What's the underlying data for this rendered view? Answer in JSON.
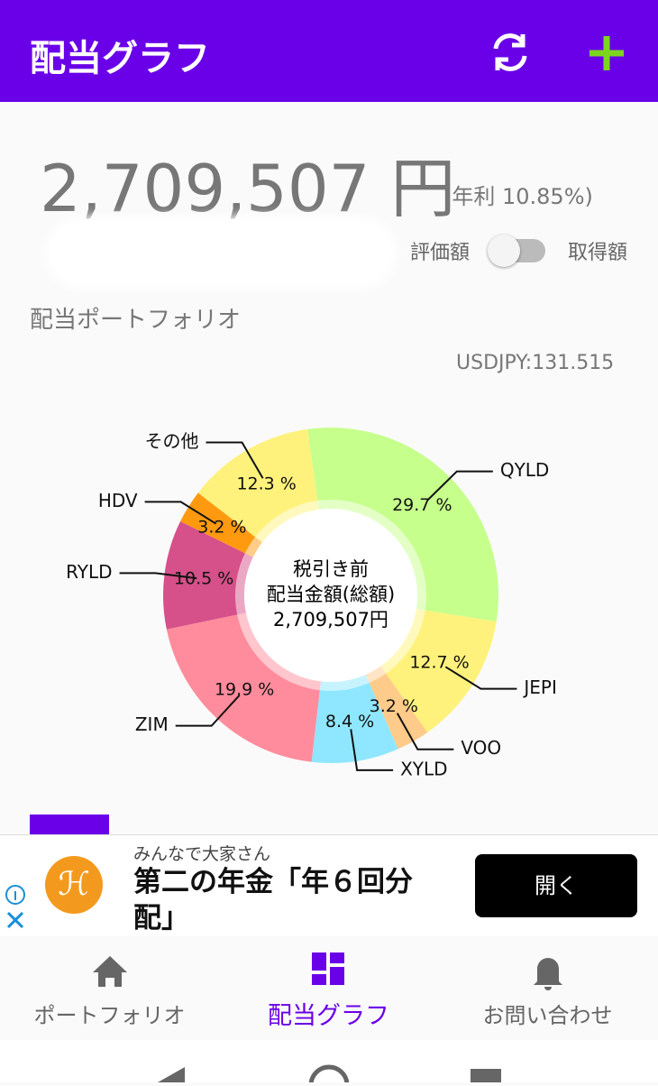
{
  "header": {
    "title": "配当グラフ"
  },
  "summary": {
    "amount": "2,709,507 円",
    "yield": "(年利 10.85%)",
    "toggle_left": "評価額",
    "toggle_right": "取得額"
  },
  "section_title": "配当ポートフォリオ",
  "fx_rate": "USDJPY:131.515",
  "chart_data": {
    "type": "donut",
    "center_text": [
      "税引き前",
      "配当金額(総額)",
      "2,709,507円"
    ],
    "categories": [
      "QYLD",
      "JEPI",
      "VOO",
      "XYLD",
      "ZIM",
      "RYLD",
      "HDV",
      "その他"
    ],
    "values": [
      29.7,
      12.7,
      3.2,
      8.4,
      19.9,
      10.5,
      3.2,
      12.3
    ],
    "value_labels": [
      "29.7 %",
      "12.7 %",
      "3.2 %",
      "8.4 %",
      "19.9 %",
      "10.5 %",
      "3.2 %",
      "12.3 %"
    ],
    "colors": [
      "#c6ff8c",
      "#fff27c",
      "#ffcb8a",
      "#8fe7ff",
      "#ff8c9c",
      "#d6508a",
      "#ff9a10",
      "#fff27c"
    ]
  },
  "ad": {
    "sponsor": "みんなで大家さん",
    "headline": "第二の年金「年６回分配」",
    "button": "開く"
  },
  "nav": [
    "ポートフォリオ",
    "配当グラフ",
    "お問い合わせ"
  ]
}
